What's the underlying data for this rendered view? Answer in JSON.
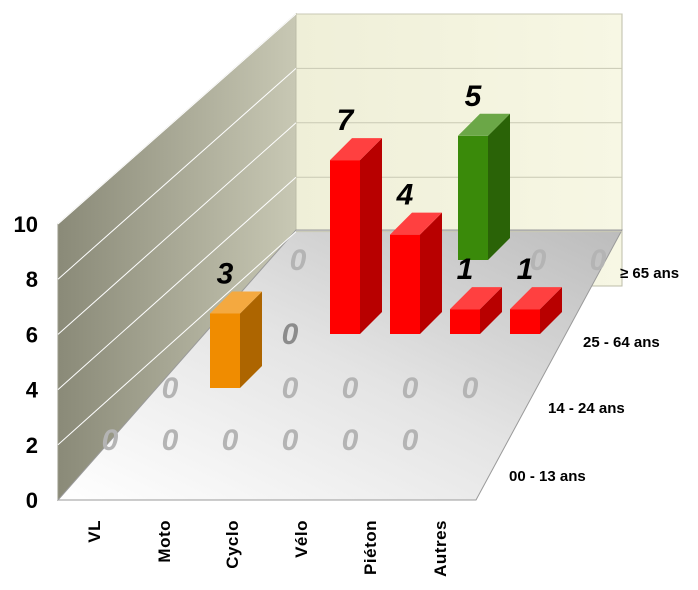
{
  "chart_data": {
    "type": "bar3d",
    "title": "",
    "xlabel": "",
    "ylabel": "",
    "ylim": [
      0,
      10
    ],
    "yticks": [
      0,
      2,
      4,
      6,
      8,
      10
    ],
    "categories": [
      "VL",
      "Moto",
      "Cyclo",
      "Vélo",
      "Piéton",
      "Autres"
    ],
    "series": [
      {
        "name": "00 - 13 ans",
        "values": [
          0,
          0,
          0,
          0,
          0,
          0
        ],
        "labels": [
          "0",
          "0",
          "0",
          "0",
          "0",
          "0"
        ]
      },
      {
        "name": "14 - 24 ans",
        "values": [
          0,
          3,
          0,
          0,
          0,
          0
        ],
        "labels": [
          "0",
          "3",
          "0",
          "0",
          "0",
          "0"
        ]
      },
      {
        "name": "25 - 64 ans",
        "values": [
          0,
          0,
          7,
          4,
          1,
          1
        ],
        "labels": [
          "0",
          "0",
          "7",
          "4",
          "1",
          "1"
        ]
      },
      {
        "name": "≥ 65 ans",
        "values": [
          0,
          0,
          0,
          5,
          0,
          0
        ],
        "labels": [
          "0",
          "0",
          "0",
          "5",
          "0",
          "0"
        ]
      }
    ],
    "series_colors": {
      "orange": "#f08c00",
      "red": "#ff0000",
      "green": "#3a8a0a",
      "zero_label": "#b4b4b4",
      "zero_label_dark": "#8c8c8c"
    },
    "grid": true
  }
}
